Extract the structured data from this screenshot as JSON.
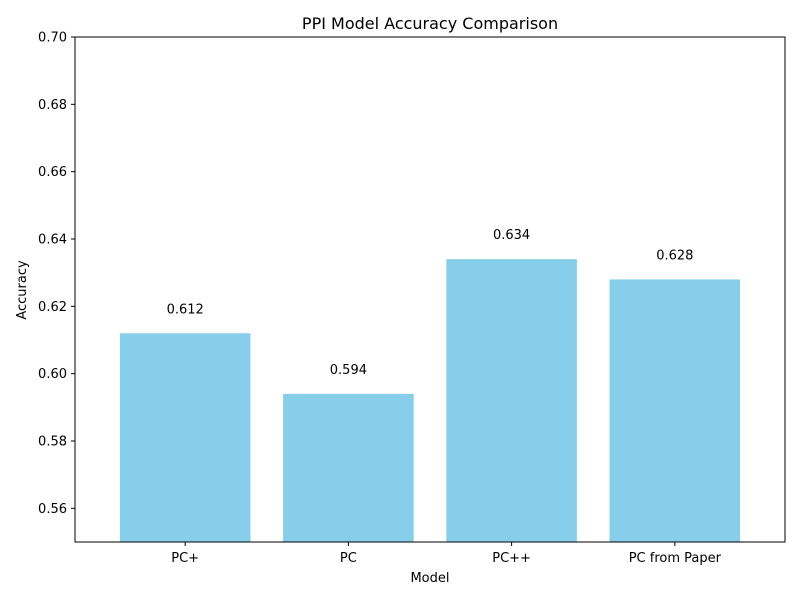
{
  "chart_data": {
    "type": "bar",
    "title": "PPI Model Accuracy Comparison",
    "xlabel": "Model",
    "ylabel": "Accuracy",
    "categories": [
      "PC+",
      "PC",
      "PC++",
      "PC from Paper"
    ],
    "values": [
      0.612,
      0.594,
      0.634,
      0.628
    ],
    "value_labels": [
      "0.612",
      "0.594",
      "0.634",
      "0.628"
    ],
    "ylim": [
      0.55,
      0.7
    ],
    "yticks": [
      0.56,
      0.58,
      0.6,
      0.62,
      0.64,
      0.66,
      0.68,
      0.7
    ],
    "ytick_labels": [
      "0.56",
      "0.58",
      "0.60",
      "0.62",
      "0.64",
      "0.66",
      "0.68",
      "0.70"
    ],
    "bar_color": "#87ceeb",
    "grid": false,
    "legend": "none"
  }
}
